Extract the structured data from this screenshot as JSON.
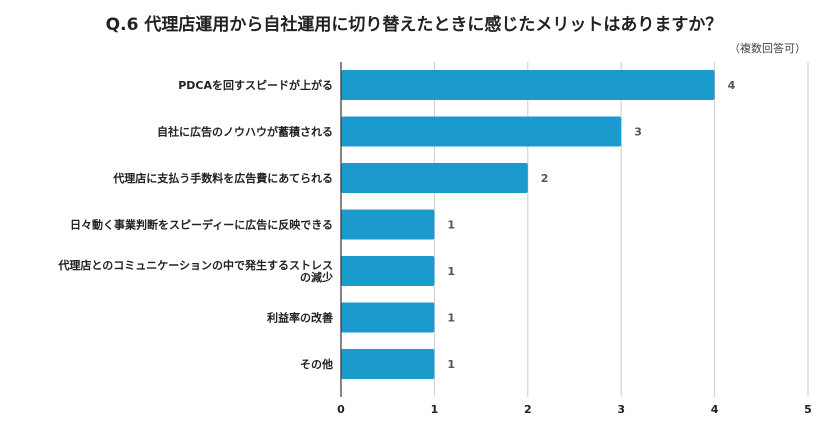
{
  "chart_data": {
    "type": "bar",
    "orientation": "horizontal",
    "title": "Q.6 代理店運用から自社運用に切り替えたときに感じたメリットはありますか？",
    "note": "（複数回答可）",
    "categories": [
      "PDCAを回すスピードが上がる",
      "自社に広告のノウハウが蓄積される",
      "代理店に支払う手数料を広告費にあてられる",
      "日々動く事業判断をスピーディーに広告に反映できる",
      "代理店とのコミュニケーションの中で発生するストレスの減少",
      "利益率の改善",
      "その他"
    ],
    "category_lines": [
      [
        "PDCAを回すスピードが上がる"
      ],
      [
        "自社に広告のノウハウが蓄積される"
      ],
      [
        "代理店に支払う手数料を広告費にあてられる"
      ],
      [
        "日々動く事業判断をスピーディーに広告に反映できる"
      ],
      [
        "代理店とのコミュニケーションの中で発生するストレス",
        "の減少"
      ],
      [
        "利益率の改善"
      ],
      [
        "その他"
      ]
    ],
    "values": [
      4,
      3,
      2,
      1,
      1,
      1,
      1
    ],
    "value_labels": [
      "4",
      "3",
      "2",
      "1",
      "1",
      "1",
      "1"
    ],
    "xlim": [
      0,
      5
    ],
    "xticks": [
      0,
      1,
      2,
      3,
      4,
      5
    ],
    "xtick_labels": [
      "0",
      "1",
      "2",
      "3",
      "4",
      "5"
    ],
    "xlabel": "",
    "ylabel": "",
    "grid": "vertical",
    "legend": "none",
    "colors": {
      "bar": "#1a9acd",
      "grid": "#cccccc",
      "axis": "#333333"
    }
  }
}
